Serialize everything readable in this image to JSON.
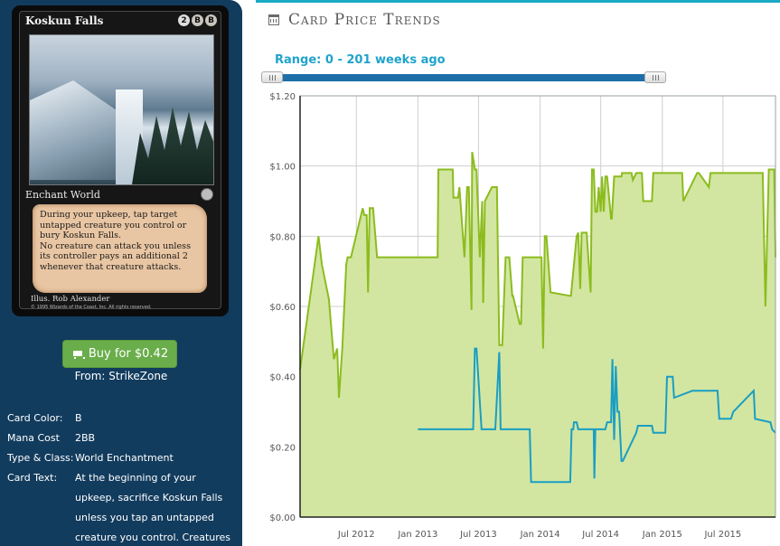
{
  "card": {
    "name": "Koskun Falls",
    "mana_cost_symbols": [
      "2",
      "B",
      "B"
    ],
    "type_line": "Enchant World",
    "rules_text": [
      "During your upkeep, tap target",
      "untapped creature you control or",
      "bury Koskun Falls.",
      "No creature can attack you unless",
      "its controller pays an additional 2",
      "whenever that creature attacks."
    ],
    "illustrator": "Illus. Rob Alexander",
    "copyright": "© 1995 Wizards of the Coast, Inc. All rights reserved."
  },
  "buy": {
    "label": "Buy for $0.42",
    "from": "From: StrikeZone",
    "icon": "shopping-cart-icon",
    "color": "#6aae4b"
  },
  "details": [
    {
      "key": "Card Color:",
      "value": "B"
    },
    {
      "key": "Mana Cost",
      "value": "2BB"
    },
    {
      "key": "Type & Class:",
      "value": "World Enchantment"
    },
    {
      "key": "Card Text:",
      "value": "At the beginning of your upkeep, sacrifice Koskun Falls unless you tap an untapped creature you control. Creatures"
    }
  ],
  "header": {
    "title": "Card Price Trends",
    "icon": "calendar-icon"
  },
  "range": {
    "label": "Range: 0 - 201 weeks ago",
    "min_weeks_ago": 0,
    "max_weeks_ago": 201
  },
  "chart_data": {
    "type": "line",
    "title": "",
    "xlabel": "",
    "ylabel": "",
    "ylim": [
      0,
      1.2
    ],
    "y_ticks": [
      "$0.00",
      "$0.20",
      "$0.40",
      "$0.60",
      "$0.80",
      "$1.00",
      "$1.20"
    ],
    "x_ticks": [
      "Jul 2012",
      "Jan 2013",
      "Jul 2013",
      "Jan 2014",
      "Jul 2014",
      "Jan 2015",
      "Jul 2015"
    ],
    "grid": true,
    "colors": {
      "green": "#8cbc1e",
      "green_fill": "#d2e6a2",
      "blue": "#1a9ec2"
    },
    "series": [
      {
        "x": [
          "2012-01-15",
          "2012-03-10",
          "2012-03-20",
          "2012-04-10",
          "2012-04-25",
          "2012-05-05",
          "2012-05-10",
          "2012-05-20",
          "2012-06-01",
          "2012-06-05",
          "2012-06-15",
          "2012-07-20",
          "2012-07-25",
          "2012-08-01",
          "2012-08-05",
          "2012-08-10",
          "2012-08-20",
          "2012-09-01",
          "2012-09-03",
          "2012-12-20",
          "2013-02-01",
          "2013-03-01",
          "2013-03-03",
          "2013-04-15",
          "2013-04-17",
          "2013-05-01",
          "2013-05-05",
          "2013-05-20",
          "2013-05-28",
          "2013-06-02",
          "2013-06-10",
          "2013-06-12",
          "2013-06-20",
          "2013-06-25",
          "2013-07-05",
          "2013-07-12",
          "2013-07-15",
          "2013-07-20",
          "2013-08-10",
          "2013-08-25",
          "2013-09-01",
          "2013-09-10",
          "2013-09-20",
          "2013-10-01",
          "2013-10-10",
          "2013-10-12",
          "2013-11-01",
          "2013-11-05",
          "2013-11-10",
          "2013-12-01",
          "2013-12-20",
          "2014-01-05",
          "2014-01-10",
          "2014-01-15",
          "2014-01-20",
          "2014-02-01",
          "2014-02-03",
          "2014-04-01",
          "2014-04-03",
          "2014-04-20",
          "2014-04-25",
          "2014-05-01",
          "2014-05-05",
          "2014-05-20",
          "2014-06-01",
          "2014-06-05",
          "2014-06-10",
          "2014-06-15",
          "2014-06-20",
          "2014-06-25",
          "2014-07-01",
          "2014-07-05",
          "2014-07-10",
          "2014-07-15",
          "2014-07-20",
          "2014-08-01",
          "2014-08-03",
          "2014-08-10",
          "2014-08-15",
          "2014-09-01",
          "2014-09-03",
          "2014-10-01",
          "2014-10-05",
          "2014-10-15",
          "2014-11-01",
          "2014-11-05",
          "2014-12-01",
          "2014-12-05",
          "2015-01-20",
          "2015-01-25",
          "2015-03-01",
          "2015-03-05",
          "2015-04-15",
          "2015-04-20",
          "2015-05-20",
          "2015-05-25",
          "2015-07-01",
          "2015-07-05",
          "2015-08-01",
          "2015-08-05",
          "2015-10-25",
          "2015-10-28",
          "2015-11-05",
          "2015-11-15",
          "2015-12-01",
          "2015-12-05"
        ],
        "values": [
          0.42,
          0.8,
          0.72,
          0.62,
          0.45,
          0.48,
          0.34,
          0.48,
          0.72,
          0.74,
          0.74,
          0.88,
          0.86,
          0.86,
          0.64,
          0.88,
          0.88,
          0.74,
          0.74,
          0.74,
          0.74,
          0.74,
          0.99,
          0.99,
          0.91,
          0.91,
          0.94,
          0.74,
          0.94,
          0.94,
          0.59,
          1.04,
          0.99,
          0.99,
          0.74,
          0.9,
          0.61,
          0.9,
          0.94,
          0.94,
          0.49,
          0.49,
          0.74,
          0.74,
          0.63,
          0.63,
          0.55,
          0.55,
          0.74,
          0.74,
          0.74,
          0.74,
          0.48,
          0.8,
          0.8,
          0.64,
          0.64,
          0.63,
          0.63,
          0.8,
          0.81,
          0.65,
          0.81,
          0.81,
          0.64,
          0.99,
          0.99,
          0.87,
          0.87,
          0.94,
          0.87,
          0.97,
          0.87,
          0.97,
          0.97,
          0.85,
          0.85,
          0.97,
          0.97,
          0.97,
          0.98,
          0.98,
          0.96,
          0.98,
          0.98,
          0.9,
          0.9,
          0.98,
          0.98,
          0.98,
          0.98,
          0.9,
          0.98,
          0.98,
          0.94,
          0.98,
          0.98,
          0.98,
          0.98,
          0.98,
          0.98,
          0.98,
          0.6,
          0.99,
          0.99,
          0.74
        ]
      },
      {
        "x": [
          "2013-01-01",
          "2013-06-15",
          "2013-06-20",
          "2013-06-25",
          "2013-07-10",
          "2013-07-20",
          "2013-08-01",
          "2013-08-20",
          "2013-09-01",
          "2013-09-05",
          "2013-12-01",
          "2013-12-05",
          "2014-03-01",
          "2014-03-05",
          "2014-04-01",
          "2014-04-05",
          "2014-04-10",
          "2014-04-12",
          "2014-04-20",
          "2014-04-25",
          "2014-06-10",
          "2014-06-12",
          "2014-06-15",
          "2014-06-20",
          "2014-07-15",
          "2014-07-20",
          "2014-08-01",
          "2014-08-05",
          "2014-08-10",
          "2014-08-15",
          "2014-08-20",
          "2014-08-25",
          "2014-09-01",
          "2014-09-05",
          "2014-10-15",
          "2014-10-20",
          "2014-12-01",
          "2014-12-05",
          "2015-01-10",
          "2015-01-15",
          "2015-02-01",
          "2015-02-05",
          "2015-04-01",
          "2015-04-05",
          "2015-06-15",
          "2015-06-20",
          "2015-07-25",
          "2015-08-01",
          "2015-10-01",
          "2015-10-05",
          "2015-11-20",
          "2015-11-25",
          "2015-12-05"
        ],
        "values": [
          0.25,
          0.25,
          0.48,
          0.48,
          0.25,
          0.25,
          0.25,
          0.25,
          0.47,
          0.25,
          0.25,
          0.1,
          0.1,
          0.1,
          0.1,
          0.25,
          0.25,
          0.27,
          0.27,
          0.25,
          0.25,
          0.11,
          0.25,
          0.25,
          0.25,
          0.27,
          0.27,
          0.45,
          0.22,
          0.43,
          0.3,
          0.3,
          0.16,
          0.16,
          0.24,
          0.26,
          0.26,
          0.24,
          0.24,
          0.4,
          0.4,
          0.34,
          0.36,
          0.36,
          0.36,
          0.28,
          0.28,
          0.3,
          0.36,
          0.28,
          0.27,
          0.25,
          0.24
        ]
      }
    ]
  }
}
